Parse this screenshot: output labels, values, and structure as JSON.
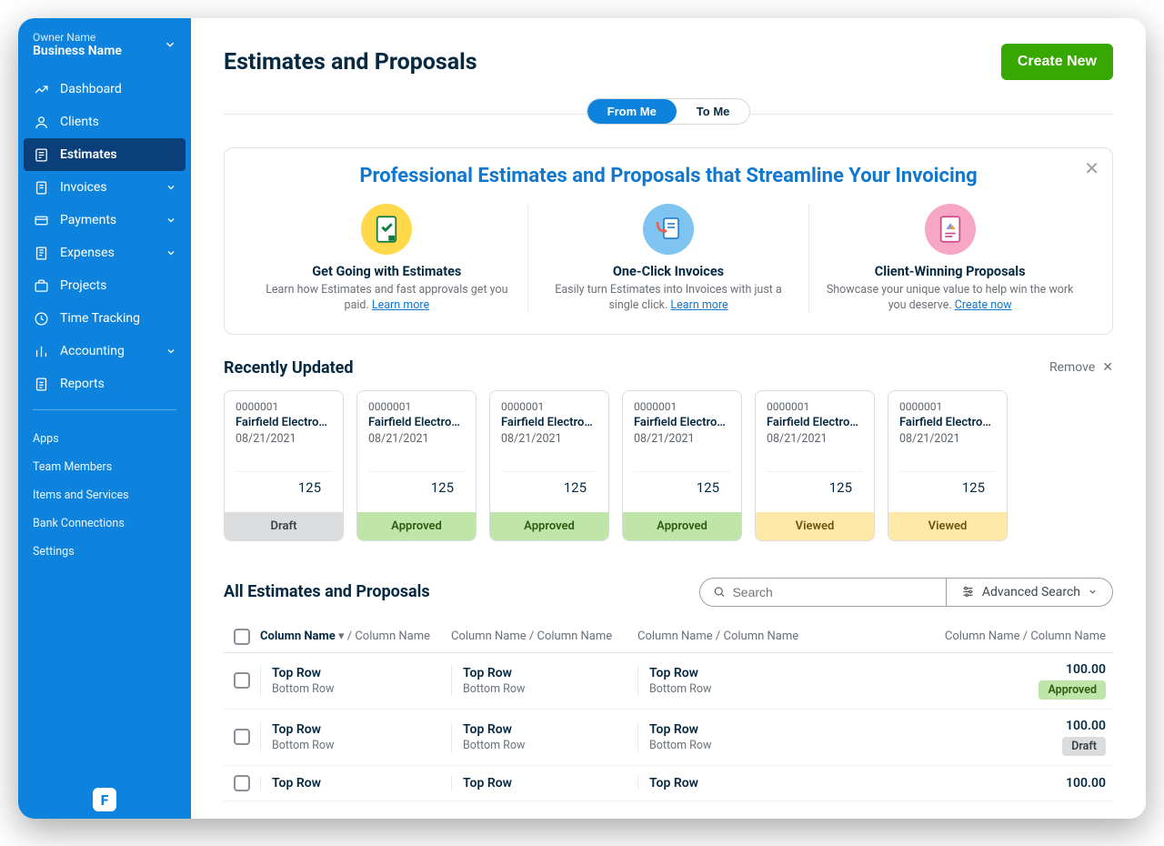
{
  "colors": {
    "sidebar_bg": "#0d83dd",
    "sidebar_active": "#0b3f7a",
    "accent_green": "#37a703",
    "link_blue": "#1178cf",
    "text_dark": "#062942",
    "text_muted": "#6b7177",
    "status": {
      "draft_bg": "#dadcde",
      "approved_bg": "#bfe6a8",
      "viewed_bg": "#ffe9a8"
    }
  },
  "sidebar": {
    "owner": "Owner Name",
    "business": "Business Name",
    "nav": [
      {
        "label": "Dashboard",
        "icon": "dashboard",
        "expandable": false
      },
      {
        "label": "Clients",
        "icon": "clients",
        "expandable": false
      },
      {
        "label": "Estimates",
        "icon": "estimates",
        "expandable": false,
        "active": true
      },
      {
        "label": "Invoices",
        "icon": "invoices",
        "expandable": true
      },
      {
        "label": "Payments",
        "icon": "payments",
        "expandable": true
      },
      {
        "label": "Expenses",
        "icon": "expenses",
        "expandable": true
      },
      {
        "label": "Projects",
        "icon": "projects",
        "expandable": false
      },
      {
        "label": "Time Tracking",
        "icon": "time",
        "expandable": false
      },
      {
        "label": "Accounting",
        "icon": "accounting",
        "expandable": true
      },
      {
        "label": "Reports",
        "icon": "reports",
        "expandable": false
      }
    ],
    "secondary": [
      {
        "label": "Apps"
      },
      {
        "label": "Team Members"
      },
      {
        "label": "Items and Services"
      },
      {
        "label": "Bank Connections"
      },
      {
        "label": "Settings"
      }
    ]
  },
  "page": {
    "title": "Estimates and Proposals",
    "create_button": "Create New",
    "tabs": {
      "from_me": "From Me",
      "to_me": "To Me"
    }
  },
  "promo": {
    "title": "Professional Estimates and Proposals that Streamline Your Invoicing",
    "cols": [
      {
        "title": "Get Going with Estimates",
        "desc_pre": "Learn how Estimates and fast approvals get you paid. ",
        "link": "Learn more",
        "icon_bg": "#ffd94a"
      },
      {
        "title": "One-Click Invoices",
        "desc_pre": "Easily turn Estimates into Invoices with just a single click. ",
        "link": "Learn more",
        "icon_bg": "#7fc4f0"
      },
      {
        "title": "Client-Winning Proposals",
        "desc_pre": "Showcase your unique value to help win the work you deserve. ",
        "link": "Create now",
        "icon_bg": "#f7a6c4"
      }
    ]
  },
  "recent": {
    "heading": "Recently Updated",
    "remove": "Remove",
    "cards": [
      {
        "id": "0000001",
        "client": "Fairfield Electroni...",
        "date": "08/21/2021",
        "amount": "125",
        "status": "Draft",
        "class": "st-draft"
      },
      {
        "id": "0000001",
        "client": "Fairfield Electroni...",
        "date": "08/21/2021",
        "amount": "125",
        "status": "Approved",
        "class": "st-approved"
      },
      {
        "id": "0000001",
        "client": "Fairfield Electroni...",
        "date": "08/21/2021",
        "amount": "125",
        "status": "Approved",
        "class": "st-approved"
      },
      {
        "id": "0000001",
        "client": "Fairfield Electroni...",
        "date": "08/21/2021",
        "amount": "125",
        "status": "Approved",
        "class": "st-approved"
      },
      {
        "id": "0000001",
        "client": "Fairfield Electroni...",
        "date": "08/21/2021",
        "amount": "125",
        "status": "Viewed",
        "class": "st-viewed"
      },
      {
        "id": "0000001",
        "client": "Fairfield Electroni...",
        "date": "08/21/2021",
        "amount": "125",
        "status": "Viewed",
        "class": "st-viewed"
      }
    ]
  },
  "all": {
    "heading": "All Estimates and Proposals",
    "search_placeholder": "Search",
    "advanced": "Advanced Search",
    "header": {
      "sort_col": "Column Name",
      "col_sep": " / ",
      "col": "Column Name"
    },
    "rows": [
      {
        "top": "Top Row",
        "bottom": "Bottom Row",
        "amount": "100.00",
        "badge": "Approved",
        "badge_class": "bd-approved"
      },
      {
        "top": "Top Row",
        "bottom": "Bottom Row",
        "amount": "100.00",
        "badge": "Draft",
        "badge_class": "bd-draft"
      },
      {
        "top": "Top Row",
        "bottom": "",
        "amount": "100.00",
        "badge": "",
        "badge_class": ""
      }
    ]
  }
}
